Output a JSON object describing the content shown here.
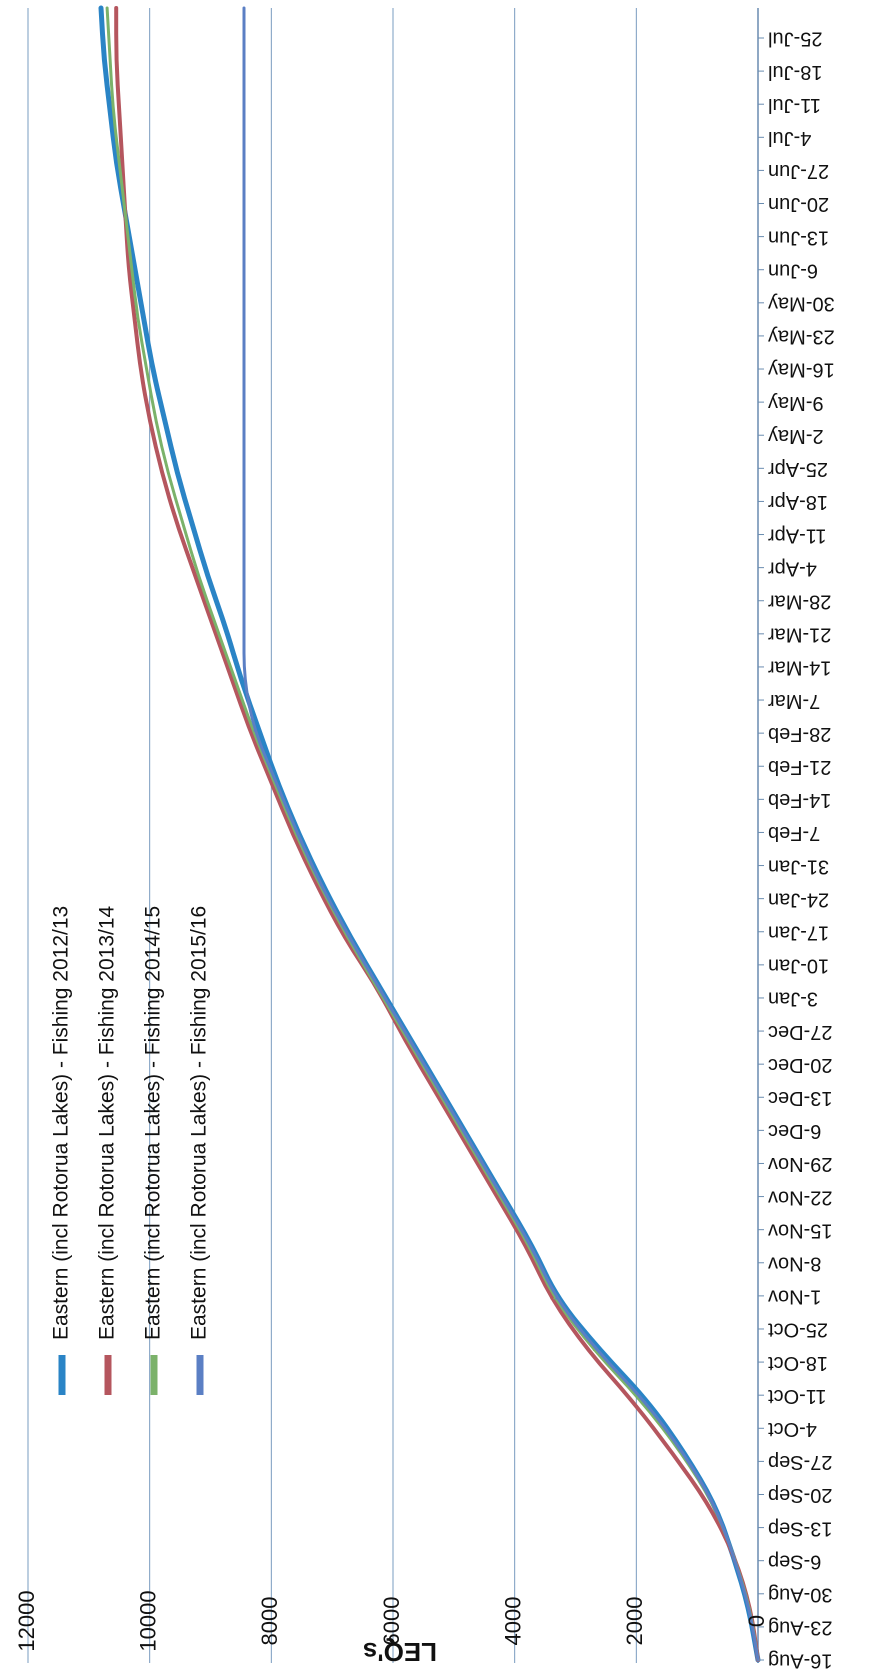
{
  "chart_data": {
    "type": "line",
    "ylabel": "LEQ's",
    "ylim": [
      0,
      12000
    ],
    "yticks": [
      0,
      2000,
      4000,
      6000,
      8000,
      10000,
      12000
    ],
    "ytick_labels": [
      "0",
      "2000",
      "4000",
      "6000",
      "8000",
      "10000",
      "12000"
    ],
    "x_ticks": [
      "16-Aug",
      "23-Aug",
      "30-Aug",
      "6-Sep",
      "13-Sep",
      "20-Sep",
      "27-Sep",
      "4-Oct",
      "11-Oct",
      "18-Oct",
      "25-Oct",
      "1-Nov",
      "8-Nov",
      "15-Nov",
      "22-Nov",
      "29-Nov",
      "6-Dec",
      "13-Dec",
      "20-Dec",
      "27-Dec",
      "3-Jan",
      "10-Jan",
      "17-Jan",
      "24-Jan",
      "31-Jan",
      "7-Feb",
      "14-Feb",
      "21-Feb",
      "28-Feb",
      "7-Mar",
      "14-Mar",
      "21-Mar",
      "28-Mar",
      "4-Apr",
      "11-Apr",
      "18-Apr",
      "25-Apr",
      "2-May",
      "9-May",
      "16-May",
      "23-May",
      "30-May",
      "6-Jun",
      "13-Jun",
      "20-Jun",
      "27-Jun",
      "4-Jul",
      "11-Jul",
      "18-Jul",
      "25-Jul"
    ],
    "grid": true,
    "legend_position": "top-left",
    "series": [
      {
        "name": "Eastern (incl Rotorua Lakes) - Fishing 2012/13",
        "color": "#2a84c6",
        "width": 5,
        "values": [
          0,
          150,
          400,
          700,
          1200,
          1800,
          2600,
          3300,
          3700,
          4200,
          4700,
          5200,
          5700,
          6200,
          6700,
          7150,
          7550,
          7900,
          8200,
          8500,
          8750,
          9050,
          9300,
          9550,
          9750,
          9950,
          10100,
          10250,
          10400,
          10550,
          10650,
          10750,
          10800
        ]
      },
      {
        "name": "Eastern (incl Rotorua Lakes) - Fishing 2013/14",
        "color": "#b5565e",
        "width": 4,
        "values": [
          0,
          120,
          380,
          800,
          1400,
          2050,
          2800,
          3400,
          3800,
          4300,
          4800,
          5300,
          5800,
          6250,
          6800,
          7250,
          7650,
          8000,
          8350,
          8650,
          8950,
          9250,
          9550,
          9800,
          10000,
          10150,
          10250,
          10350,
          10400,
          10450,
          10500,
          10550,
          10550
        ]
      },
      {
        "name": "Eastern (incl Rotorua Lakes) - Fishing 2014/15",
        "color": "#7bb26a",
        "width": 3,
        "values": [
          0,
          130,
          390,
          720,
          1250,
          1900,
          2700,
          3350,
          3750,
          4250,
          4750,
          5250,
          5750,
          6250,
          6750,
          7200,
          7600,
          7950,
          8300,
          8600,
          8900,
          9200,
          9450,
          9700,
          9900,
          10050,
          10200,
          10300,
          10400,
          10500,
          10600,
          10650,
          10700
        ]
      },
      {
        "name": "Eastern (incl Rotorua Lakes) - Fishing 2015/16",
        "color": "#5b7fc4",
        "width": 3,
        "values": [
          0,
          140,
          395,
          710,
          1220,
          1850,
          2650,
          3320,
          3720,
          4220,
          4720,
          5220,
          5720,
          6220,
          6720,
          7180,
          7570,
          7920,
          8280,
          8450,
          8450,
          8450,
          8450,
          8450,
          8450,
          8450,
          8450,
          8450,
          8450,
          8450,
          8450,
          8450,
          8450
        ]
      }
    ]
  }
}
